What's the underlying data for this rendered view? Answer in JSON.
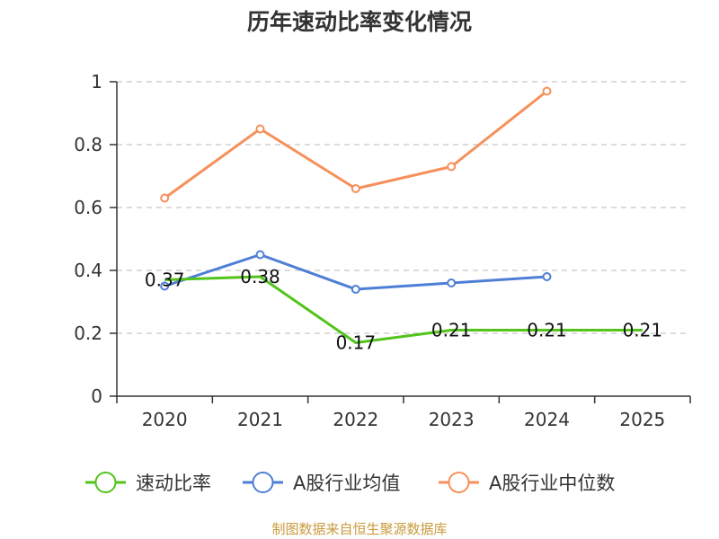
{
  "chart_data": {
    "type": "line",
    "title": "历年速动比率变化情况",
    "categories": [
      "2020",
      "2021",
      "2022",
      "2023",
      "2024",
      "2025"
    ],
    "ylim": [
      0,
      1
    ],
    "yticks": [
      0,
      0.2,
      0.4,
      0.6,
      0.8,
      1
    ],
    "ytick_labels": [
      "0",
      "0.2",
      "0.4",
      "0.6",
      "0.8",
      "1"
    ],
    "grid": "horizontal dashed",
    "legend_position": "bottom",
    "series": [
      {
        "name": "速动比率",
        "color": "#52c41a",
        "values": [
          0.37,
          0.38,
          0.17,
          0.21,
          0.21,
          0.21
        ],
        "data_labels": [
          "0.37",
          "0.38",
          "0.17",
          "0.21",
          "0.21",
          "0.21"
        ]
      },
      {
        "name": "A股行业均值",
        "color": "#4e7fd6",
        "values": [
          0.35,
          0.45,
          0.34,
          0.36,
          0.38,
          null
        ]
      },
      {
        "name": "A股行业中位数",
        "color": "#f6905a",
        "values": [
          0.63,
          0.85,
          0.66,
          0.73,
          0.97,
          null
        ]
      }
    ],
    "source": "制图数据来自恒生聚源数据库"
  }
}
